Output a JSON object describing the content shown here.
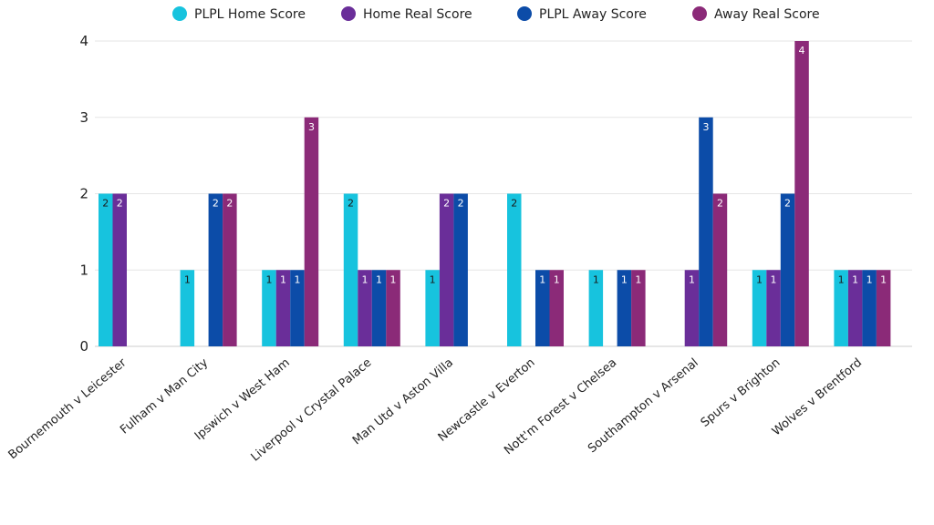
{
  "chart_data": {
    "type": "bar",
    "title": "",
    "xlabel": "",
    "ylabel": "",
    "ylim": [
      0,
      4
    ],
    "yticks": [
      0,
      1,
      2,
      3,
      4
    ],
    "grid": true,
    "legend_position": "top",
    "categories": [
      "Bournemouth v Leicester",
      "Fulham v Man City",
      "Ipswich v West Ham",
      "Liverpool v Crystal Palace",
      "Man Utd v Aston Villa",
      "Newcastle v Everton",
      "Nott'm Forest v Chelsea",
      "Southampton v Arsenal",
      "Spurs v Brighton",
      "Wolves v Brentford"
    ],
    "series": [
      {
        "name": "PLPL Home Score",
        "color": "#17C3DE",
        "label_color": "#1a1a1a",
        "values": [
          2,
          1,
          1,
          2,
          1,
          2,
          1,
          0,
          1,
          1
        ]
      },
      {
        "name": "Home Real Score",
        "color": "#6A2E99",
        "label_color": "#ffffff",
        "values": [
          2,
          0,
          1,
          1,
          2,
          0,
          0,
          1,
          1,
          1
        ]
      },
      {
        "name": "PLPL Away Score",
        "color": "#0C4CA8",
        "label_color": "#ffffff",
        "values": [
          0,
          2,
          1,
          1,
          2,
          1,
          1,
          3,
          2,
          1
        ]
      },
      {
        "name": "Away Real Score",
        "color": "#8B2A78",
        "label_color": "#ffffff",
        "values": [
          0,
          2,
          3,
          1,
          0,
          1,
          1,
          2,
          4,
          1
        ]
      }
    ]
  }
}
